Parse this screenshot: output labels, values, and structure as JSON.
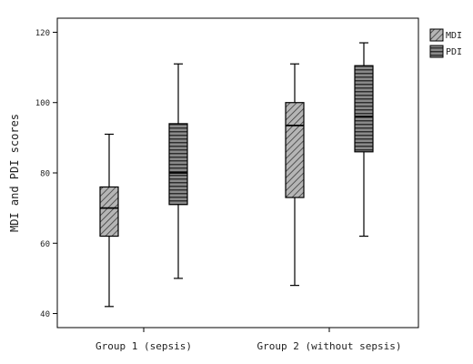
{
  "chart_data": {
    "type": "boxplot",
    "ylabel": "MDI and PDI scores",
    "xlabel": "",
    "ylim": [
      36,
      124
    ],
    "yticks": [
      40,
      60,
      80,
      100,
      120
    ],
    "grid": false,
    "legend_position": "top-right, outside plot",
    "categories": [
      "Group 1 (sepsis)",
      "Group 2 (without sepsis)"
    ],
    "series": [
      {
        "name": "MDI",
        "pattern": "diagonal-hatch",
        "fill": "#9a9a9a",
        "boxes": [
          {
            "min": 42,
            "q1": 62,
            "median": 70,
            "q3": 76,
            "max": 91
          },
          {
            "min": 48,
            "q1": 73,
            "median": 93.5,
            "q3": 100,
            "max": 111
          }
        ]
      },
      {
        "name": "PDI",
        "pattern": "horizontal-lines",
        "fill": "#7a7a7a",
        "boxes": [
          {
            "min": 50,
            "q1": 71,
            "median": 80,
            "q3": 94,
            "max": 111
          },
          {
            "min": 62,
            "q1": 86,
            "median": 96,
            "q3": 110.5,
            "max": 117
          }
        ]
      }
    ]
  }
}
